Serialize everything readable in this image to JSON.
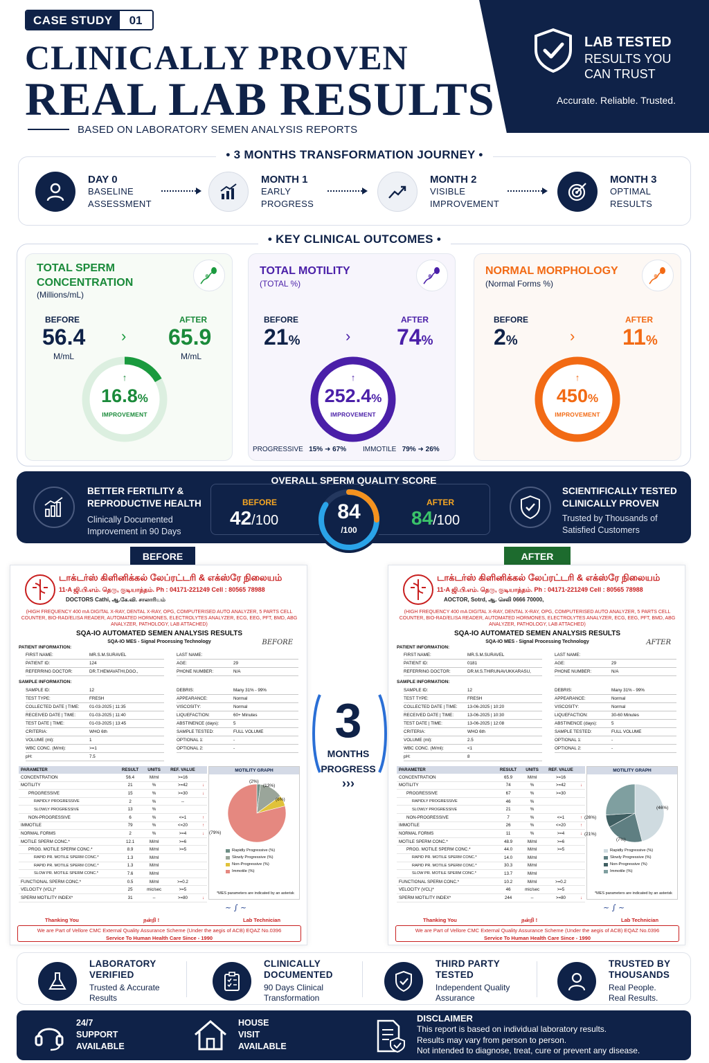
{
  "header": {
    "badge_label": "CASE STUDY",
    "badge_number": "01",
    "title_line1": "CLINICALLY PROVEN",
    "title_line2": "REAL LAB RESULTS",
    "subtitle": "BASED ON LABORATORY SEMEN ANALYSIS REPORTS"
  },
  "trust_panel": {
    "line1": "LAB TESTED",
    "line2": "RESULTS YOU CAN TRUST",
    "tagline": "Accurate. Reliable. Trusted.",
    "icon": "shield-check-icon"
  },
  "journey": {
    "title": "3 MONTHS TRANSFORMATION JOURNEY",
    "steps": [
      {
        "label": "DAY 0",
        "desc1": "BASELINE",
        "desc2": "ASSESSMENT",
        "icon": "user-icon"
      },
      {
        "label": "MONTH 1",
        "desc1": "EARLY",
        "desc2": "PROGRESS",
        "icon": "bar-chart-icon"
      },
      {
        "label": "MONTH 2",
        "desc1": "VISIBLE",
        "desc2": "IMPROVEMENT",
        "icon": "trend-line-icon"
      },
      {
        "label": "MONTH 3",
        "desc1": "OPTIMAL",
        "desc2": "RESULTS",
        "icon": "target-icon"
      }
    ]
  },
  "outcomes": {
    "title": "KEY CLINICAL OUTCOMES",
    "before_label": "BEFORE",
    "after_label": "AFTER",
    "improvement_label": "IMPROVEMENT",
    "cards": [
      {
        "title1": "TOTAL SPERM",
        "title2": "CONCENTRATION",
        "sub": "(Millions/mL)",
        "before": "56.4",
        "after": "65.9",
        "unit": "M/mL",
        "improvement": "16.8",
        "pct": "%",
        "fraction": 0.168,
        "color": "#1a9a3e",
        "icon": "sperm-icon"
      },
      {
        "title1": "TOTAL MOTILITY",
        "sub": "(TOTAL %)",
        "before": "21",
        "after": "74",
        "unit": "%",
        "improvement": "252.4",
        "pct": "%",
        "fraction": 1.0,
        "color": "#4a1fa8",
        "icon": "sperm-icon"
      },
      {
        "title1": "NORMAL MORPHOLOGY",
        "sub": "(Normal Forms %)",
        "before": "2",
        "after": "11",
        "unit": "%",
        "improvement": "450",
        "pct": "%",
        "fraction": 1.0,
        "color": "#f26a14",
        "icon": "sperm-icon"
      }
    ],
    "progressive": {
      "label": "PROGRESSIVE",
      "before": "15%",
      "after": "67%"
    },
    "immotile": {
      "label": "IMMOTILE",
      "before": "79%",
      "after": "26%"
    }
  },
  "quality": {
    "left_title1": "BETTER FERTILITY &",
    "left_title2": "REPRODUCTIVE HEALTH",
    "left_text1": "Clinically Documented",
    "left_text2": "Improvement in 90 Days",
    "center_title": "OVERALL SPERM QUALITY SCORE",
    "before_label": "BEFORE",
    "before_value": "42",
    "after_label": "AFTER",
    "after_value": "84",
    "out_of": "/100",
    "gauge_value": "84",
    "gauge_sub": "/100",
    "gauge_fraction": 0.84,
    "right_title1": "SCIENTIFICALLY TESTED",
    "right_title2": "CLINICALLY PROVEN",
    "right_text1": "Trusted by Thousands of",
    "right_text2": "Satisfied Customers"
  },
  "reports": {
    "before_tag": "BEFORE",
    "after_tag": "AFTER",
    "middle_number": "3",
    "middle_text1": "MONTHS",
    "middle_text2": "PROGRESS",
    "middle_arrows": "›››",
    "lab_name": "டாக்டர்ஸ் கிளினிக்கல் லேப்ரட்டரி & எக்ஸ்ரே நிலையம்",
    "lab_address": "11-A ஜி.பி.எம். தெரு, குடியாத்தம்.   Ph : 04171-221249  Cell : 80565 78988",
    "lab_services": "(HIGH FREQUENCY 400 mA DIGITAL X-RAY, DENTAL X-RAY, OPG, COMPUTERISED AUTO ANALYZER, 5 PARTS CELL COUNTER, BIO-RAD/ELISA READER, AUTOMATED HORMONES, ELECTROLYTES ANALYZER, ECG, EEG, PFT, BMD, ABG ANALYZER, PATHOLOGY, LAB ATTACHED)",
    "report_title": "SQA-IO AUTOMATED SEMEN ANALYSIS RESULTS",
    "report_sub": "SQA-IO MES - Signal Processing Technology",
    "patient_heading": "PATIENT INFORMATION:",
    "sample_heading": "SAMPLE INFORMATION:",
    "table_headers": [
      "PARAMETER",
      "RESULT",
      "UNITS",
      "REF. VALUE"
    ],
    "graph_heading": "MOTILITY GRAPH",
    "legend": [
      "Rapidly Progressive (%)",
      "Slowly Progressive (%)",
      "Non-Progressive (%)",
      "Immotile (%)"
    ],
    "asterisk_note": "*MES parameters are indicated by an asterisk",
    "thanks": "Thanking You",
    "tamil_thanks": "நன்றி !",
    "lab_tech": "Lab Technician",
    "footer_line1": "We are Part of Vellore CMC External Quality Assurance Scheme (Under the aegis of ACB) EQAZ No.0396",
    "footer_line2": "Service To Human Health Care Since - 1990",
    "before": {
      "doctors": "DOCTORS Cathi, ஆ.கே.வி. சாலாரியம்",
      "handnote": "BEFORE",
      "patient": [
        [
          "FIRST NAME:",
          "MR.S.M.SURAVEL",
          "LAST NAME:",
          ""
        ],
        [
          "PATIENT ID:",
          "124",
          "AGE:",
          "29"
        ],
        [
          "REFERRING DOCTOR:",
          "DR.T.HEMAVATHI,DGO.,",
          "PHONE NUMBER:",
          "N/A"
        ]
      ],
      "sample": [
        [
          "SAMPLE ID:",
          "12",
          "DEBRIS:",
          "Many 31% - 99%"
        ],
        [
          "TEST TYPE:",
          "FRESH",
          "APPEARANCE:",
          "Normal"
        ],
        [
          "COLLECTED DATE | TIME:",
          "01-03-2025 | 11:35",
          "VISCOSITY:",
          "Normal"
        ],
        [
          "RECEIVED DATE | TIME:",
          "01-03-2025 | 11:40",
          "LIQUEFACTION:",
          "60+ Minutes"
        ],
        [
          "TEST DATE | TIME:",
          "01-03-2025 | 13:45",
          "ABSTINENCE (days):",
          "5"
        ],
        [
          "CRITERIA:",
          "WHO 6th",
          "SAMPLE TESTED:",
          "FULL VOLUME"
        ],
        [
          "VOLUME (ml):",
          "1",
          "OPTIONAL 1:",
          "-"
        ],
        [
          "WBC CONC. (M/ml):",
          ">=1",
          "OPTIONAL 2:",
          "-"
        ],
        [
          "pH:",
          "7.5",
          "",
          ""
        ]
      ],
      "rows": [
        [
          "CONCENTRATION",
          "56.4",
          "M/ml",
          ">=16",
          "",
          0
        ],
        [
          "MOTILITY",
          "21",
          "%",
          ">=42",
          "↓",
          0
        ],
        [
          "PROGRESSIVE",
          "15",
          "%",
          ">=30",
          "↓",
          1
        ],
        [
          "RAPIDLY PROGRESSIVE",
          "2",
          "%",
          "--",
          "",
          2
        ],
        [
          "SLOWLY PROGRESSIVE",
          "13",
          "%",
          "",
          "",
          2
        ],
        [
          "NON-PROGRESSIVE",
          "6",
          "%",
          "<=1",
          "↑",
          1
        ],
        [
          "IMMOTILE",
          "79",
          "%",
          "<=20",
          "↑",
          0
        ],
        [
          "NORMAL FORMS",
          "2",
          "%",
          ">=4",
          "↓",
          0
        ],
        [
          "MOTILE SPERM CONC.*",
          "12.1",
          "M/ml",
          ">=6",
          "",
          0
        ],
        [
          "PROG. MOTILE SPERM CONC.*",
          "8.9",
          "M/ml",
          ">=5",
          "",
          1
        ],
        [
          "RAPID PR. MOTILE SPERM CONC.*",
          "1.3",
          "M/ml",
          "",
          "",
          2
        ],
        [
          "RAPID PR. MOTILE SPERM CONC.*",
          "1.3",
          "M/ml",
          "",
          "",
          2
        ],
        [
          "SLOW PR. MOTILE SPERM CONC.*",
          "7.6",
          "M/ml",
          "",
          "",
          2
        ],
        [
          "FUNCTIONAL SPERM CONC.*",
          "0.5",
          "M/ml",
          ">=0.2",
          "",
          0
        ],
        [
          "VELOCITY (VCL)*",
          "25",
          "mic/sec",
          ">=5",
          "",
          0
        ],
        [
          "SPERM MOTILITY INDEX*",
          "31",
          "--",
          ">=80",
          "↓",
          0
        ]
      ],
      "pie": [
        {
          "label": "Rapidly Progressive (%)",
          "value": 2,
          "color": "#6f8f86"
        },
        {
          "label": "Slowly Progressive (%)",
          "value": 13,
          "color": "#9aa59a"
        },
        {
          "label": "Non-Progressive (%)",
          "value": 6,
          "color": "#e0c23a"
        },
        {
          "label": "Immotile (%)",
          "value": 79,
          "color": "#e58880"
        }
      ],
      "pie_labels": [
        "(2%)",
        "(13%)",
        "(6%)",
        "(79%)"
      ]
    },
    "after": {
      "doctors": "AOCTOR, Sotrd, ஆ. செலி 0666 70000,",
      "handnote": "AFTER",
      "patient": [
        [
          "FIRST NAME:",
          "MR.S.M.SURAVEL",
          "LAST NAME:",
          ""
        ],
        [
          "PATIENT ID:",
          "0181",
          "AGE:",
          "29"
        ],
        [
          "REFERRING DOCTOR:",
          "DR.M.S.THIRUNAVUKKARASU,",
          "PHONE NUMBER:",
          "N/A"
        ]
      ],
      "sample": [
        [
          "SAMPLE ID:",
          "12",
          "DEBRIS:",
          "Many 31% - 99%"
        ],
        [
          "TEST TYPE:",
          "FRESH",
          "APPEARANCE:",
          "Normal"
        ],
        [
          "COLLECTED DATE | TIME:",
          "13-06-2025 | 10:20",
          "VISCOSITY:",
          "Normal"
        ],
        [
          "RECEIVED DATE | TIME:",
          "13-06-2025 | 10:30",
          "LIQUEFACTION:",
          "30-60 Minutes"
        ],
        [
          "TEST DATE | TIME:",
          "13-06-2025 | 12:08",
          "ABSTINENCE (days):",
          "5"
        ],
        [
          "CRITERIA:",
          "WHO 6th",
          "SAMPLE TESTED:",
          "FULL VOLUME"
        ],
        [
          "VOLUME (ml):",
          "2.5",
          "OPTIONAL 1:",
          "-"
        ],
        [
          "WBC CONC. (M/ml):",
          "<1",
          "OPTIONAL 2:",
          "-"
        ],
        [
          "pH:",
          "8",
          "",
          ""
        ]
      ],
      "rows": [
        [
          "CONCENTRATION",
          "65.9",
          "M/ml",
          ">=16",
          "",
          0
        ],
        [
          "MOTILITY",
          "74",
          "%",
          ">=42",
          "↓",
          0
        ],
        [
          "PROGRESSIVE",
          "67",
          "%",
          ">=30",
          "",
          1
        ],
        [
          "RAPIDLY PROGRESSIVE",
          "46",
          "%",
          "",
          "",
          2
        ],
        [
          "SLOWLY PROGRESSIVE",
          "21",
          "%",
          "",
          "",
          2
        ],
        [
          "NON-PROGRESSIVE",
          "7",
          "%",
          "<=1",
          "↑",
          1
        ],
        [
          "IMMOTILE",
          "26",
          "%",
          "<=20",
          "↑",
          0
        ],
        [
          "NORMAL FORMS",
          "11",
          "%",
          ">=4",
          "↓",
          0
        ],
        [
          "MOTILE SPERM CONC.*",
          "48.9",
          "M/ml",
          ">=6",
          "",
          0
        ],
        [
          "PROG. MOTILE SPERM CONC.*",
          "44.0",
          "M/ml",
          ">=5",
          "",
          1
        ],
        [
          "RAPID PR. MOTILE SPERM CONC.*",
          "14.0",
          "M/ml",
          "",
          "",
          2
        ],
        [
          "RAPID PR. MOTILE SPERM CONC.*",
          "30.3",
          "M/ml",
          "",
          "",
          2
        ],
        [
          "SLOW PR. MOTILE SPERM CONC.*",
          "13.7",
          "M/ml",
          "",
          "",
          2
        ],
        [
          "FUNCTIONAL SPERM CONC.*",
          "10.2",
          "M/ml",
          ">=0.2",
          "",
          0
        ],
        [
          "VELOCITY (VCL)*",
          "46",
          "mic/sec",
          ">=5",
          "",
          0
        ],
        [
          "SPERM MOTILITY INDEX*",
          "244",
          "--",
          ">=80",
          "↓",
          0
        ]
      ],
      "pie": [
        {
          "label": "Rapidly Progressive (%)",
          "value": 46,
          "color": "#cfdbe0"
        },
        {
          "label": "Slowly Progressive (%)",
          "value": 21,
          "color": "#5f7f82"
        },
        {
          "label": "Non-Progressive (%)",
          "value": 7,
          "color": "#3f5f62"
        },
        {
          "label": "Immotile (%)",
          "value": 26,
          "color": "#7f9fa0"
        }
      ],
      "pie_labels": [
        "(46%)",
        "(21%)",
        "(7%)",
        "(26%)"
      ]
    }
  },
  "features": [
    {
      "title1": "LABORATORY",
      "title2": "VERIFIED",
      "text1": "Trusted & Accurate",
      "text2": "Results",
      "icon": "flask-icon"
    },
    {
      "title1": "CLINICALLY",
      "title2": "DOCUMENTED",
      "text1": "90 Days Clinical",
      "text2": "Transformation",
      "icon": "clipboard-icon"
    },
    {
      "title1": "THIRD PARTY",
      "title2": "TESTED",
      "text1": "Independent Quality",
      "text2": "Assurance",
      "icon": "shield-check-icon"
    },
    {
      "title1": "TRUSTED BY",
      "title2": "THOUSANDS",
      "text1": "Real People.",
      "text2": "Real Results.",
      "icon": "users-icon"
    }
  ],
  "bottom": {
    "support1": "24/7",
    "support2": "SUPPORT",
    "support3": "AVAILABLE",
    "visit1": "HOUSE",
    "visit2": "VISIT",
    "visit3": "AVAILABLE",
    "disclaimer_title": "DISCLAIMER",
    "disclaimer1": "This report is based on individual laboratory results.",
    "disclaimer2": "Results may vary from person to person.",
    "disclaimer3": "Not intended to diagnose, treat, cure or prevent any disease."
  }
}
